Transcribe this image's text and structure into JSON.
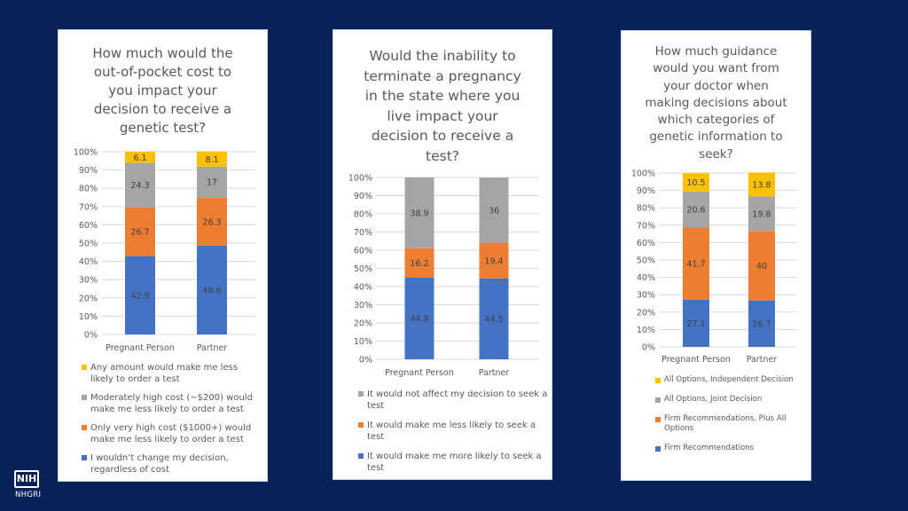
{
  "colors": {
    "blue": "#4472c4",
    "orange": "#ed7d31",
    "gray": "#a5a5a5",
    "yellow": "#ffc000",
    "background": "#0a2258"
  },
  "logo": {
    "mark": "NIH",
    "org": "NHGRI"
  },
  "y_ticks": [
    "0%",
    "10%",
    "20%",
    "30%",
    "40%",
    "50%",
    "60%",
    "70%",
    "80%",
    "90%",
    "100%"
  ],
  "chart_data": [
    {
      "type": "bar",
      "stacked": true,
      "title": "How much would the\nout-of-pocket cost to\nyou impact your\ndecision to receive a\ngenetic test?",
      "categories": [
        "Pregnant Person",
        "Partner"
      ],
      "ylim": [
        0,
        100
      ],
      "series": [
        {
          "name": "I wouldn’t change my decision, regardless of cost",
          "color": "#4472c4",
          "values": [
            42.9,
            48.6
          ]
        },
        {
          "name": "Only very high cost ($1000+) would make me less likely to order a test",
          "color": "#ed7d31",
          "values": [
            26.7,
            26.3
          ]
        },
        {
          "name": "Moderately high cost (~$200) would make me less likely to order a test",
          "color": "#a5a5a5",
          "values": [
            24.3,
            17
          ]
        },
        {
          "name": "Any amount would make me less likely to order a test",
          "color": "#ffc000",
          "values": [
            6.1,
            8.1
          ]
        }
      ],
      "legend_order": [
        3,
        2,
        1,
        0
      ]
    },
    {
      "type": "bar",
      "stacked": true,
      "title": "Would the inability to\nterminate a pregnancy\nin the state where you\nlive impact your\ndecision to receive a\ntest?",
      "categories": [
        "Pregnant Person",
        "Partner"
      ],
      "ylim": [
        0,
        100
      ],
      "series": [
        {
          "name": "It would make me more likely to seek a test",
          "color": "#4472c4",
          "values": [
            44.9,
            44.5
          ]
        },
        {
          "name": "It would make me less likely to seek a test",
          "color": "#ed7d31",
          "values": [
            16.2,
            19.4
          ]
        },
        {
          "name": "It would not affect my decision to seek a test",
          "color": "#a5a5a5",
          "values": [
            38.9,
            36
          ]
        }
      ],
      "legend_order": [
        2,
        1,
        0
      ]
    },
    {
      "type": "bar",
      "stacked": true,
      "title": "How much guidance\nwould you want from\nyour doctor when\nmaking decisions about\nwhich categories of\ngenetic information to\nseek?",
      "categories": [
        "Pregnant Person",
        "Partner"
      ],
      "ylim": [
        0,
        100
      ],
      "series": [
        {
          "name": "Firm Recommendations",
          "color": "#4472c4",
          "values": [
            27.1,
            26.7
          ]
        },
        {
          "name": "Firm Recommendations, Plus All Options",
          "color": "#ed7d31",
          "values": [
            41.7,
            40
          ]
        },
        {
          "name": "All Options, Joint Decision",
          "color": "#a5a5a5",
          "values": [
            20.6,
            19.8
          ]
        },
        {
          "name": "All Options, Independent Decision",
          "color": "#ffc000",
          "values": [
            10.5,
            13.8
          ]
        }
      ],
      "legend_order": [
        3,
        2,
        1,
        0
      ]
    }
  ]
}
